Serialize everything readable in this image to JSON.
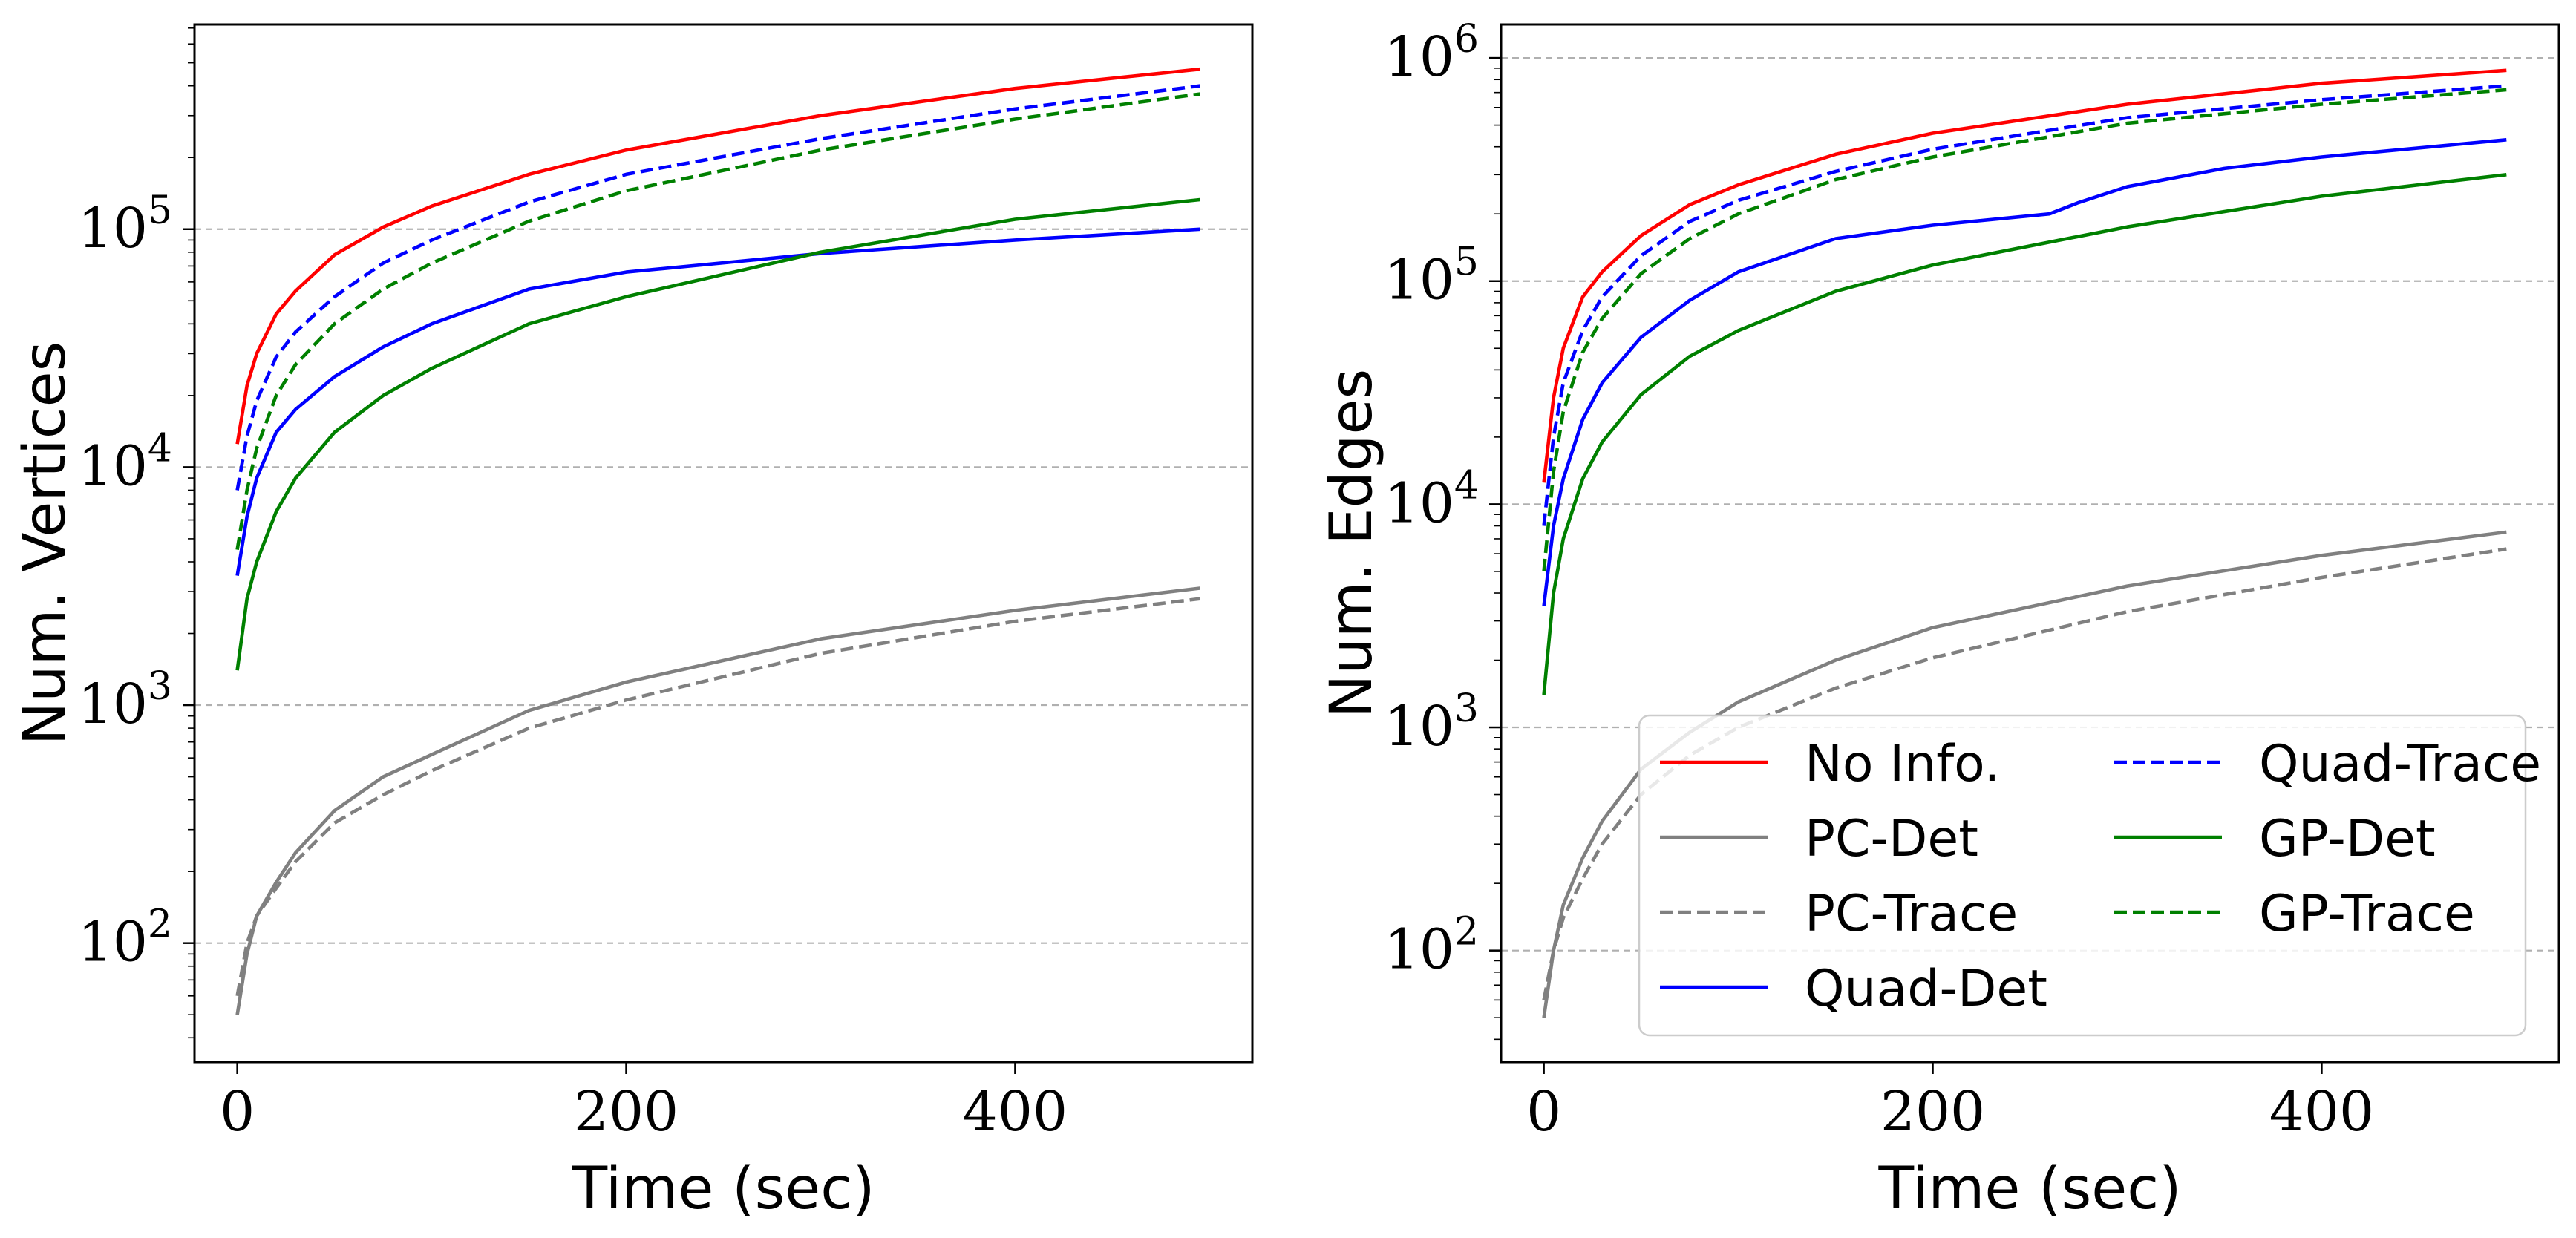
{
  "chart_data": [
    {
      "type": "line",
      "title": "",
      "xlabel": "Time (sec)",
      "ylabel": "Num. Vertices",
      "yscale": "log",
      "xlim": [
        -22,
        522
      ],
      "ylim_log10": [
        1.5,
        5.86
      ],
      "xticks": [
        0,
        200,
        400
      ],
      "yticks": [
        {
          "base": "10",
          "exp": "2",
          "value": 100
        },
        {
          "base": "10",
          "exp": "3",
          "value": 1000
        },
        {
          "base": "10",
          "exp": "4",
          "value": 10000
        },
        {
          "base": "10",
          "exp": "5",
          "value": 100000
        }
      ],
      "grid": "y-major-dashed",
      "legend": "none",
      "series": [
        {
          "name": "No Info.",
          "color": "#ff0000",
          "style": "solid",
          "x": [
            0,
            5,
            10,
            20,
            30,
            50,
            75,
            100,
            150,
            200,
            300,
            400,
            495
          ],
          "y": [
            12500,
            22000,
            30000,
            44000,
            55000,
            78000,
            102000,
            125000,
            170000,
            215000,
            300000,
            390000,
            470000
          ]
        },
        {
          "name": "PC-Det",
          "color": "#808080",
          "style": "solid",
          "x": [
            0,
            5,
            10,
            20,
            30,
            50,
            75,
            100,
            150,
            200,
            300,
            400,
            495
          ],
          "y": [
            50,
            90,
            130,
            180,
            240,
            360,
            500,
            620,
            950,
            1250,
            1900,
            2500,
            3100
          ]
        },
        {
          "name": "PC-Trace",
          "color": "#808080",
          "style": "dashed",
          "x": [
            0,
            5,
            10,
            20,
            30,
            50,
            75,
            100,
            150,
            200,
            300,
            400,
            495
          ],
          "y": [
            60,
            100,
            130,
            170,
            220,
            320,
            420,
            530,
            800,
            1050,
            1650,
            2250,
            2800
          ]
        },
        {
          "name": "Quad-Det",
          "color": "#0000ff",
          "style": "solid",
          "x": [
            0,
            5,
            10,
            20,
            30,
            50,
            75,
            100,
            150,
            200,
            300,
            400,
            495
          ],
          "y": [
            3500,
            6200,
            9000,
            14000,
            17500,
            24000,
            32000,
            40000,
            56000,
            66000,
            79000,
            90000,
            100000
          ]
        },
        {
          "name": "Quad-Trace",
          "color": "#0000ff",
          "style": "dashed",
          "x": [
            0,
            5,
            10,
            20,
            30,
            50,
            75,
            100,
            150,
            200,
            300,
            400,
            495
          ],
          "y": [
            8000,
            13500,
            19000,
            29000,
            37000,
            52000,
            72000,
            90000,
            130000,
            170000,
            240000,
            320000,
            400000
          ]
        },
        {
          "name": "GP-Det",
          "color": "#008000",
          "style": "solid",
          "x": [
            0,
            5,
            10,
            20,
            30,
            50,
            75,
            100,
            150,
            200,
            300,
            400,
            495
          ],
          "y": [
            1400,
            2800,
            4000,
            6500,
            9000,
            14000,
            20000,
            26000,
            40000,
            52000,
            80000,
            110000,
            133000
          ]
        },
        {
          "name": "GP-Trace",
          "color": "#008000",
          "style": "dashed",
          "x": [
            0,
            5,
            10,
            20,
            30,
            50,
            75,
            100,
            150,
            200,
            300,
            400,
            495
          ],
          "y": [
            4500,
            8000,
            12000,
            20000,
            27000,
            40000,
            56000,
            72000,
            108000,
            145000,
            215000,
            290000,
            370000
          ]
        }
      ]
    },
    {
      "type": "line",
      "title": "",
      "xlabel": "Time (sec)",
      "ylabel": "Num. Edges",
      "yscale": "log",
      "xlim": [
        -22,
        522
      ],
      "ylim_log10": [
        1.5,
        6.15
      ],
      "xticks": [
        0,
        200,
        400
      ],
      "yticks": [
        {
          "base": "10",
          "exp": "2",
          "value": 100
        },
        {
          "base": "10",
          "exp": "3",
          "value": 1000
        },
        {
          "base": "10",
          "exp": "4",
          "value": 10000
        },
        {
          "base": "10",
          "exp": "5",
          "value": 100000
        },
        {
          "base": "10",
          "exp": "6",
          "value": 1000000
        }
      ],
      "grid": "y-major-dashed",
      "legend": "lower-right",
      "legend_columns": 2,
      "series": [
        {
          "name": "No Info.",
          "color": "#ff0000",
          "style": "solid",
          "x": [
            0,
            5,
            10,
            20,
            30,
            50,
            75,
            100,
            150,
            200,
            300,
            400,
            495
          ],
          "y": [
            12500,
            30000,
            50000,
            85000,
            110000,
            160000,
            220000,
            270000,
            370000,
            460000,
            620000,
            770000,
            880000
          ]
        },
        {
          "name": "PC-Det",
          "color": "#808080",
          "style": "solid",
          "x": [
            0,
            5,
            10,
            20,
            30,
            50,
            75,
            100,
            150,
            200,
            300,
            400,
            495
          ],
          "y": [
            50,
            100,
            160,
            260,
            380,
            650,
            950,
            1300,
            2000,
            2800,
            4300,
            5900,
            7500
          ]
        },
        {
          "name": "PC-Trace",
          "color": "#808080",
          "style": "dashed",
          "x": [
            0,
            5,
            10,
            20,
            30,
            50,
            75,
            100,
            150,
            200,
            300,
            400,
            495
          ],
          "y": [
            60,
            100,
            140,
            210,
            300,
            500,
            750,
            1000,
            1500,
            2050,
            3300,
            4700,
            6300
          ]
        },
        {
          "name": "Quad-Det",
          "color": "#0000ff",
          "style": "solid",
          "x": [
            0,
            5,
            10,
            20,
            30,
            50,
            75,
            100,
            150,
            200,
            260,
            275,
            300,
            350,
            400,
            495
          ],
          "y": [
            3500,
            8000,
            13000,
            24000,
            35000,
            56000,
            82000,
            110000,
            155000,
            178000,
            200000,
            225000,
            265000,
            320000,
            360000,
            430000
          ]
        },
        {
          "name": "Quad-Trace",
          "color": "#0000ff",
          "style": "dashed",
          "x": [
            0,
            5,
            10,
            20,
            30,
            50,
            75,
            100,
            150,
            200,
            300,
            400,
            495
          ],
          "y": [
            8000,
            20000,
            35000,
            60000,
            85000,
            130000,
            185000,
            230000,
            310000,
            390000,
            540000,
            650000,
            750000
          ]
        },
        {
          "name": "GP-Det",
          "color": "#008000",
          "style": "solid",
          "x": [
            0,
            5,
            10,
            20,
            30,
            50,
            75,
            100,
            150,
            200,
            300,
            400,
            495
          ],
          "y": [
            1400,
            4000,
            7000,
            13000,
            19000,
            31000,
            46000,
            60000,
            90000,
            118000,
            175000,
            240000,
            300000
          ]
        },
        {
          "name": "GP-Trace",
          "color": "#008000",
          "style": "dashed",
          "x": [
            0,
            5,
            10,
            20,
            30,
            50,
            75,
            100,
            150,
            200,
            300,
            400,
            495
          ],
          "y": [
            5000,
            14000,
            26000,
            48000,
            68000,
            108000,
            155000,
            200000,
            285000,
            360000,
            510000,
            620000,
            720000
          ]
        }
      ]
    }
  ]
}
